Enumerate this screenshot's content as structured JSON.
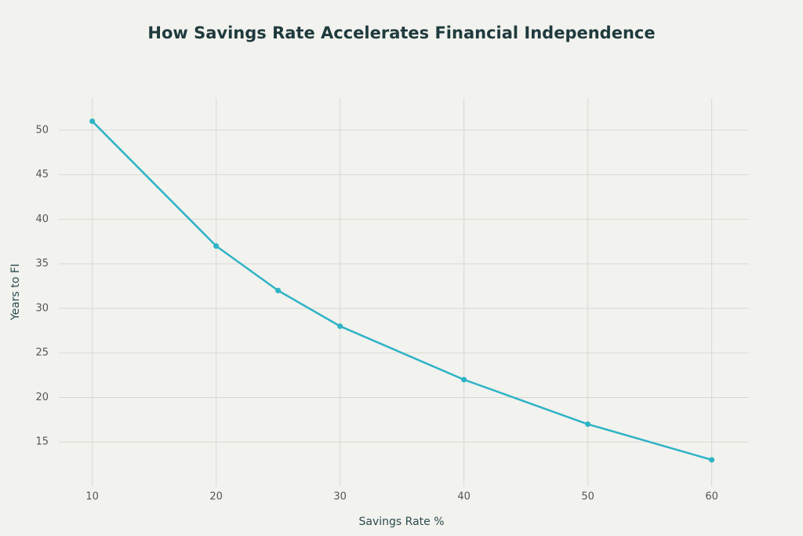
{
  "chart_data": {
    "type": "line",
    "title": "How Savings Rate Accelerates Financial Independence",
    "x_label": "Savings Rate %",
    "y_label": "Years to FI",
    "x": [
      10,
      20,
      25,
      30,
      40,
      50,
      60
    ],
    "series": [
      {
        "name": "Years to FI",
        "color": "#2db3c6",
        "values": [
          51,
          37,
          32,
          28,
          22,
          17,
          13
        ]
      }
    ],
    "xlim": [
      7.3,
      63
    ],
    "ylim": [
      10,
      53.6
    ],
    "xticks": [
      10,
      20,
      30,
      40,
      50,
      60
    ],
    "yticks": [
      15,
      20,
      25,
      30,
      35,
      40,
      45,
      50
    ],
    "grid": true
  }
}
